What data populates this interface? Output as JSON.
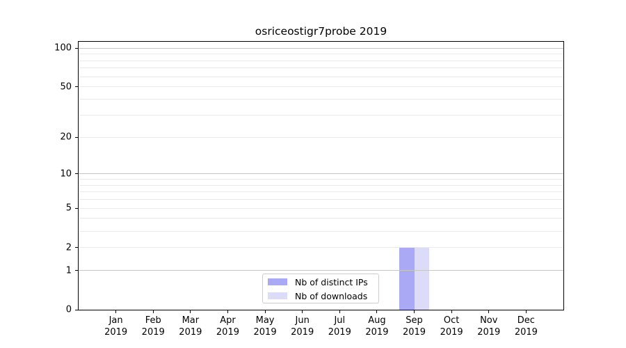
{
  "chart_data": {
    "type": "bar",
    "title": "osriceostigr7probe 2019",
    "x": {
      "categories": [
        "Jan",
        "Feb",
        "Mar",
        "Apr",
        "May",
        "Jun",
        "Jul",
        "Aug",
        "Sep",
        "Oct",
        "Nov",
        "Dec"
      ],
      "year_label": "2019"
    },
    "series": [
      {
        "name": "Nb of distinct IPs",
        "color": "#a9a9f5",
        "values": [
          0,
          0,
          0,
          0,
          0,
          0,
          0,
          0,
          2,
          0,
          0,
          0
        ]
      },
      {
        "name": "Nb of downloads",
        "color": "#dcdcf8",
        "values": [
          0,
          0,
          0,
          0,
          0,
          0,
          0,
          0,
          2,
          0,
          0,
          0
        ]
      }
    ],
    "y_axis": {
      "scale": "log10(1+y)",
      "range": [
        0,
        112
      ],
      "tick_labels": [
        0,
        1,
        2,
        5,
        10,
        20,
        50,
        100
      ],
      "major_gridlines": [
        1,
        10,
        100
      ],
      "minor_gridlines": [
        2,
        3,
        4,
        5,
        6,
        7,
        8,
        9,
        20,
        30,
        40,
        50,
        60,
        70,
        80,
        90
      ]
    },
    "legend": {
      "position": "bottom-center",
      "entries": [
        "Nb of distinct IPs",
        "Nb of downloads"
      ]
    },
    "colors": {
      "grid_major": "#c6c6c6",
      "grid_minor": "#eaeaea",
      "spine": "#000000",
      "text": "#000000",
      "background": "#ffffff",
      "legend_border": "#cccccc"
    }
  }
}
